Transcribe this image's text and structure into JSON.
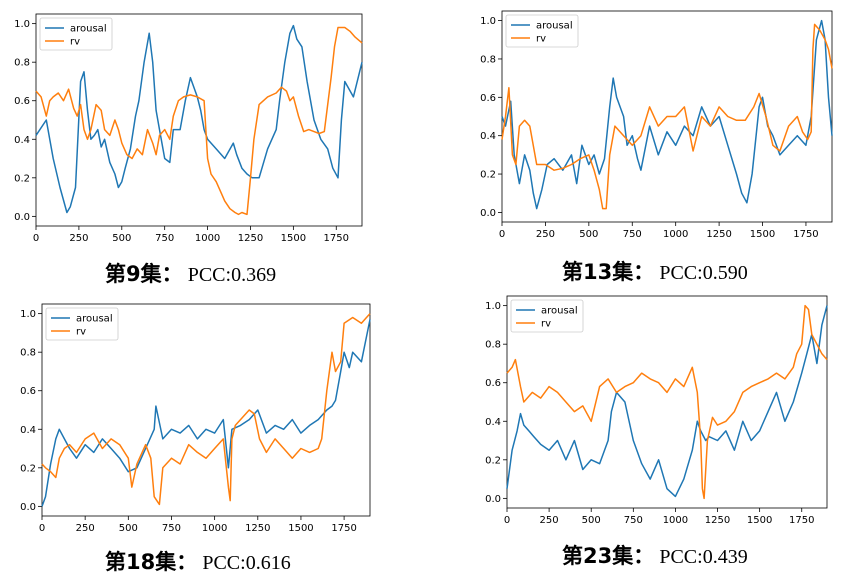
{
  "chart_data": [
    {
      "type": "line",
      "xlim": [
        0,
        1900
      ],
      "ylim": [
        -0.05,
        1.05
      ],
      "xticks": [
        0,
        250,
        500,
        750,
        1000,
        1250,
        1500,
        1750
      ],
      "yticks": [
        0.0,
        0.2,
        0.4,
        0.6,
        0.8,
        1.0
      ],
      "ytick_labels": [
        "0.0",
        "0.2",
        "0.4",
        "0.6",
        "0.8",
        "1.0"
      ],
      "legend_position": "upper-left",
      "series": [
        {
          "name": "arousal",
          "color": "#1f77b4",
          "x": [
            0,
            60,
            100,
            140,
            180,
            200,
            230,
            260,
            280,
            300,
            320,
            340,
            360,
            380,
            400,
            430,
            460,
            480,
            500,
            520,
            550,
            580,
            600,
            630,
            660,
            680,
            700,
            720,
            750,
            780,
            800,
            840,
            870,
            900,
            940,
            960,
            980,
            1000,
            1050,
            1100,
            1150,
            1170,
            1200,
            1230,
            1260,
            1300,
            1350,
            1400,
            1420,
            1450,
            1480,
            1500,
            1520,
            1550,
            1580,
            1620,
            1660,
            1700,
            1730,
            1760,
            1780,
            1800,
            1850,
            1900
          ],
          "y": [
            0.42,
            0.5,
            0.3,
            0.15,
            0.02,
            0.05,
            0.15,
            0.7,
            0.75,
            0.55,
            0.4,
            0.42,
            0.45,
            0.36,
            0.4,
            0.28,
            0.22,
            0.15,
            0.18,
            0.25,
            0.35,
            0.52,
            0.6,
            0.8,
            0.95,
            0.8,
            0.55,
            0.45,
            0.3,
            0.28,
            0.45,
            0.45,
            0.6,
            0.72,
            0.62,
            0.55,
            0.45,
            0.4,
            0.35,
            0.3,
            0.38,
            0.32,
            0.25,
            0.22,
            0.2,
            0.2,
            0.35,
            0.45,
            0.6,
            0.8,
            0.95,
            0.99,
            0.92,
            0.88,
            0.7,
            0.5,
            0.4,
            0.35,
            0.25,
            0.2,
            0.5,
            0.7,
            0.62,
            0.8
          ]
        },
        {
          "name": "rv",
          "color": "#ff7f0e",
          "x": [
            0,
            30,
            60,
            80,
            100,
            130,
            160,
            190,
            220,
            240,
            260,
            280,
            300,
            320,
            350,
            380,
            400,
            430,
            460,
            480,
            500,
            530,
            560,
            590,
            620,
            650,
            680,
            700,
            720,
            750,
            780,
            800,
            830,
            860,
            900,
            940,
            980,
            1000,
            1020,
            1050,
            1080,
            1100,
            1130,
            1160,
            1180,
            1200,
            1230,
            1250,
            1270,
            1300,
            1350,
            1400,
            1430,
            1460,
            1480,
            1500,
            1530,
            1560,
            1590,
            1620,
            1650,
            1680,
            1720,
            1740,
            1760,
            1800,
            1830,
            1860,
            1900
          ],
          "y": [
            0.65,
            0.62,
            0.52,
            0.6,
            0.62,
            0.64,
            0.6,
            0.66,
            0.56,
            0.52,
            0.58,
            0.45,
            0.4,
            0.45,
            0.58,
            0.55,
            0.45,
            0.42,
            0.5,
            0.45,
            0.38,
            0.32,
            0.3,
            0.35,
            0.32,
            0.45,
            0.38,
            0.32,
            0.42,
            0.45,
            0.4,
            0.52,
            0.6,
            0.62,
            0.63,
            0.62,
            0.6,
            0.3,
            0.22,
            0.18,
            0.12,
            0.08,
            0.04,
            0.02,
            0.01,
            0.02,
            0.01,
            0.2,
            0.4,
            0.58,
            0.62,
            0.64,
            0.67,
            0.65,
            0.6,
            0.62,
            0.52,
            0.44,
            0.45,
            0.44,
            0.43,
            0.44,
            0.72,
            0.88,
            0.98,
            0.98,
            0.96,
            0.93,
            0.9
          ]
        }
      ],
      "caption_episode": "第9集：",
      "caption_pcc": "PCC:0.369"
    },
    {
      "type": "line",
      "xlim": [
        0,
        1900
      ],
      "ylim": [
        -0.05,
        1.05
      ],
      "xticks": [
        0,
        250,
        500,
        750,
        1000,
        1250,
        1500,
        1750
      ],
      "yticks": [
        0.0,
        0.2,
        0.4,
        0.6,
        0.8,
        1.0
      ],
      "ytick_labels": [
        "0.0",
        "0.2",
        "0.4",
        "0.6",
        "0.8",
        "1.0"
      ],
      "legend_position": "upper-left",
      "series": [
        {
          "name": "arousal",
          "color": "#1f77b4",
          "x": [
            0,
            20,
            50,
            70,
            100,
            130,
            160,
            180,
            200,
            230,
            260,
            300,
            350,
            400,
            430,
            460,
            500,
            530,
            560,
            590,
            620,
            640,
            660,
            700,
            720,
            750,
            780,
            800,
            850,
            900,
            950,
            1000,
            1050,
            1100,
            1150,
            1200,
            1250,
            1300,
            1350,
            1380,
            1410,
            1440,
            1480,
            1500,
            1530,
            1560,
            1600,
            1650,
            1700,
            1750,
            1780,
            1810,
            1840,
            1860,
            1880,
            1900
          ],
          "y": [
            0.5,
            0.45,
            0.58,
            0.3,
            0.15,
            0.3,
            0.22,
            0.1,
            0.02,
            0.12,
            0.25,
            0.28,
            0.22,
            0.3,
            0.15,
            0.35,
            0.25,
            0.3,
            0.2,
            0.28,
            0.55,
            0.7,
            0.6,
            0.5,
            0.35,
            0.4,
            0.28,
            0.22,
            0.45,
            0.3,
            0.42,
            0.35,
            0.45,
            0.4,
            0.55,
            0.45,
            0.5,
            0.35,
            0.2,
            0.1,
            0.05,
            0.2,
            0.55,
            0.6,
            0.45,
            0.4,
            0.3,
            0.35,
            0.4,
            0.35,
            0.5,
            0.9,
            1.0,
            0.9,
            0.6,
            0.4
          ]
        },
        {
          "name": "rv",
          "color": "#ff7f0e",
          "x": [
            0,
            20,
            40,
            60,
            80,
            100,
            130,
            160,
            200,
            250,
            300,
            350,
            400,
            450,
            500,
            530,
            560,
            580,
            600,
            620,
            650,
            700,
            750,
            800,
            850,
            900,
            950,
            1000,
            1050,
            1100,
            1150,
            1200,
            1250,
            1300,
            1350,
            1400,
            1450,
            1480,
            1520,
            1560,
            1600,
            1650,
            1700,
            1730,
            1760,
            1780,
            1790,
            1800,
            1830,
            1860,
            1880,
            1900
          ],
          "y": [
            0.38,
            0.5,
            0.65,
            0.3,
            0.25,
            0.45,
            0.48,
            0.45,
            0.25,
            0.25,
            0.22,
            0.23,
            0.25,
            0.28,
            0.3,
            0.22,
            0.12,
            0.02,
            0.02,
            0.3,
            0.45,
            0.4,
            0.35,
            0.4,
            0.55,
            0.45,
            0.5,
            0.5,
            0.55,
            0.32,
            0.5,
            0.45,
            0.55,
            0.5,
            0.48,
            0.48,
            0.55,
            0.62,
            0.5,
            0.35,
            0.32,
            0.45,
            0.5,
            0.42,
            0.38,
            0.42,
            0.85,
            0.98,
            0.95,
            0.9,
            0.85,
            0.75
          ]
        }
      ],
      "caption_episode": "第13集：",
      "caption_pcc": "PCC:0.590"
    },
    {
      "type": "line",
      "xlim": [
        0,
        1900
      ],
      "ylim": [
        -0.05,
        1.05
      ],
      "xticks": [
        0,
        250,
        500,
        750,
        1000,
        1250,
        1500,
        1750
      ],
      "yticks": [
        0.0,
        0.2,
        0.4,
        0.6,
        0.8,
        1.0
      ],
      "ytick_labels": [
        "0.0",
        "0.2",
        "0.4",
        "0.6",
        "0.8",
        "1.0"
      ],
      "legend_position": "upper-left",
      "series": [
        {
          "name": "arousal",
          "color": "#1f77b4",
          "x": [
            0,
            20,
            50,
            80,
            100,
            130,
            160,
            200,
            250,
            300,
            350,
            400,
            450,
            500,
            550,
            600,
            650,
            660,
            700,
            750,
            800,
            850,
            900,
            950,
            1000,
            1050,
            1080,
            1100,
            1150,
            1200,
            1250,
            1300,
            1350,
            1400,
            1450,
            1500,
            1550,
            1600,
            1650,
            1680,
            1700,
            1730,
            1750,
            1780,
            1800,
            1850,
            1900
          ],
          "y": [
            0.0,
            0.05,
            0.22,
            0.35,
            0.4,
            0.35,
            0.3,
            0.25,
            0.32,
            0.28,
            0.35,
            0.3,
            0.25,
            0.18,
            0.2,
            0.3,
            0.4,
            0.52,
            0.35,
            0.4,
            0.38,
            0.42,
            0.35,
            0.4,
            0.38,
            0.45,
            0.2,
            0.4,
            0.42,
            0.45,
            0.5,
            0.38,
            0.42,
            0.4,
            0.45,
            0.38,
            0.42,
            0.45,
            0.5,
            0.52,
            0.55,
            0.7,
            0.8,
            0.72,
            0.8,
            0.75,
            0.97
          ]
        },
        {
          "name": "rv",
          "color": "#ff7f0e",
          "x": [
            0,
            20,
            50,
            80,
            100,
            130,
            160,
            200,
            250,
            300,
            350,
            400,
            450,
            500,
            520,
            550,
            600,
            630,
            650,
            680,
            700,
            750,
            800,
            850,
            900,
            950,
            1000,
            1050,
            1080,
            1090,
            1100,
            1120,
            1150,
            1200,
            1230,
            1260,
            1300,
            1350,
            1400,
            1450,
            1500,
            1550,
            1600,
            1620,
            1650,
            1680,
            1700,
            1730,
            1750,
            1800,
            1850,
            1880,
            1900
          ],
          "y": [
            0.22,
            0.2,
            0.18,
            0.15,
            0.25,
            0.3,
            0.32,
            0.28,
            0.35,
            0.38,
            0.3,
            0.35,
            0.32,
            0.25,
            0.1,
            0.22,
            0.32,
            0.25,
            0.05,
            0.01,
            0.2,
            0.25,
            0.22,
            0.32,
            0.28,
            0.25,
            0.3,
            0.35,
            0.1,
            0.03,
            0.35,
            0.42,
            0.45,
            0.5,
            0.48,
            0.35,
            0.28,
            0.35,
            0.3,
            0.25,
            0.3,
            0.28,
            0.3,
            0.35,
            0.6,
            0.8,
            0.7,
            0.75,
            0.95,
            0.98,
            0.95,
            0.98,
            1.0
          ]
        }
      ],
      "caption_episode": "第18集：",
      "caption_pcc": "PCC:0.616"
    },
    {
      "type": "line",
      "xlim": [
        0,
        1900
      ],
      "ylim": [
        -0.05,
        1.05
      ],
      "xticks": [
        0,
        250,
        500,
        750,
        1000,
        1250,
        1500,
        1750
      ],
      "yticks": [
        0.0,
        0.2,
        0.4,
        0.6,
        0.8,
        1.0
      ],
      "ytick_labels": [
        "0.0",
        "0.2",
        "0.4",
        "0.6",
        "0.8",
        "1.0"
      ],
      "legend_position": "upper-left",
      "series": [
        {
          "name": "arousal",
          "color": "#1f77b4",
          "x": [
            0,
            30,
            60,
            80,
            100,
            130,
            160,
            200,
            250,
            300,
            350,
            400,
            450,
            500,
            550,
            600,
            620,
            650,
            700,
            750,
            800,
            850,
            900,
            950,
            1000,
            1050,
            1100,
            1130,
            1150,
            1180,
            1200,
            1250,
            1300,
            1350,
            1400,
            1450,
            1500,
            1550,
            1600,
            1650,
            1700,
            1750,
            1780,
            1810,
            1840,
            1870,
            1900
          ],
          "y": [
            0.05,
            0.25,
            0.35,
            0.44,
            0.38,
            0.35,
            0.32,
            0.28,
            0.25,
            0.3,
            0.2,
            0.3,
            0.15,
            0.2,
            0.18,
            0.3,
            0.45,
            0.55,
            0.5,
            0.3,
            0.18,
            0.1,
            0.2,
            0.05,
            0.01,
            0.1,
            0.25,
            0.4,
            0.35,
            0.3,
            0.32,
            0.3,
            0.35,
            0.25,
            0.4,
            0.3,
            0.35,
            0.45,
            0.55,
            0.4,
            0.5,
            0.65,
            0.75,
            0.85,
            0.7,
            0.9,
            1.0
          ]
        },
        {
          "name": "rv",
          "color": "#ff7f0e",
          "x": [
            0,
            30,
            50,
            80,
            100,
            150,
            200,
            250,
            300,
            350,
            400,
            450,
            500,
            550,
            600,
            650,
            700,
            750,
            800,
            850,
            900,
            950,
            1000,
            1050,
            1100,
            1130,
            1150,
            1160,
            1170,
            1190,
            1220,
            1250,
            1300,
            1350,
            1400,
            1450,
            1500,
            1550,
            1600,
            1650,
            1700,
            1720,
            1750,
            1770,
            1790,
            1810,
            1840,
            1870,
            1900
          ],
          "y": [
            0.65,
            0.68,
            0.72,
            0.58,
            0.5,
            0.55,
            0.52,
            0.58,
            0.55,
            0.5,
            0.45,
            0.48,
            0.4,
            0.58,
            0.62,
            0.55,
            0.58,
            0.6,
            0.65,
            0.62,
            0.6,
            0.55,
            0.62,
            0.58,
            0.68,
            0.55,
            0.3,
            0.05,
            0.0,
            0.3,
            0.42,
            0.38,
            0.4,
            0.45,
            0.55,
            0.58,
            0.6,
            0.62,
            0.65,
            0.62,
            0.68,
            0.75,
            0.8,
            1.0,
            0.98,
            0.85,
            0.8,
            0.75,
            0.72
          ]
        }
      ],
      "caption_episode": "第23集：",
      "caption_pcc": "PCC:0.439"
    }
  ]
}
